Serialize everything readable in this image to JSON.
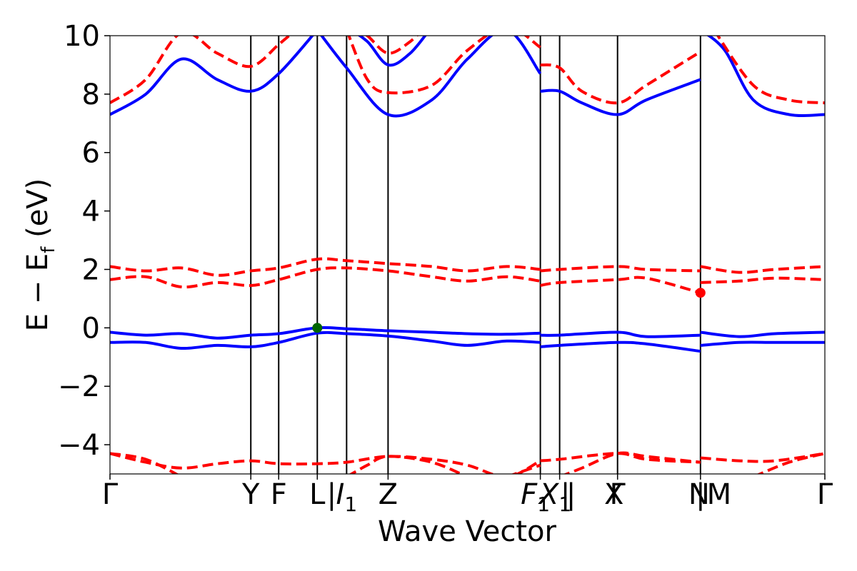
{
  "chart_data": {
    "type": "line",
    "xlabel": "Wave Vector",
    "ylabel": "E − E",
    "ylabel_sub": "f",
    "ylabel_unit": "(eV)",
    "ylim": [
      -5,
      10
    ],
    "xlim": [
      0,
      1
    ],
    "grid": false,
    "legend": "none",
    "yticks": [
      -4,
      -2,
      0,
      2,
      4,
      6,
      8,
      10
    ],
    "ytick_labels": [
      "−4",
      "−2",
      "0",
      "2",
      "4",
      "6",
      "8",
      "10"
    ],
    "kpath_labels": [
      {
        "x": 0.0,
        "label": "Γ"
      },
      {
        "x": 0.197,
        "label": "Y"
      },
      {
        "x": 0.236,
        "label": "F"
      },
      {
        "x": 0.29,
        "label": "L"
      },
      {
        "x": 0.331,
        "label": "I",
        "sub": "1",
        "italic": true
      },
      {
        "x": 0.389,
        "label": "Z"
      },
      {
        "x": 0.595,
        "label": "F",
        "sub": "1",
        "italic": true
      },
      {
        "x": 0.623,
        "label": "X",
        "sub": "1",
        "italic": true
      },
      {
        "x": 0.705,
        "label": "X"
      },
      {
        "x": 0.71,
        "label": "Γ"
      },
      {
        "x": 0.824,
        "label": "N"
      },
      {
        "x": 0.852,
        "label": "M"
      },
      {
        "x": 1.0,
        "label": "Γ"
      }
    ],
    "kpath_separators": [
      {
        "x": 0.31
      },
      {
        "x": 0.645
      },
      {
        "x": 0.637
      },
      {
        "x": 0.826
      }
    ],
    "vlines": [
      0.197,
      0.236,
      0.29,
      0.331,
      0.389,
      0.602,
      0.629,
      0.71,
      0.826
    ],
    "colors": {
      "valence": "#0000ff",
      "conduction": "#ff0000",
      "vbm": "#006400",
      "cbm": "#ff0000"
    },
    "markers": [
      {
        "name": "VBM",
        "x": 0.29,
        "y": 0.0,
        "color": "#006400"
      },
      {
        "name": "CBM",
        "x": 0.826,
        "y": 1.2,
        "color": "#ff0000"
      }
    ],
    "series": [
      {
        "band": "valence",
        "style": "solid",
        "segments": [
          [
            [
              0.0,
              -0.15
            ],
            [
              0.05,
              -0.25
            ],
            [
              0.1,
              -0.2
            ],
            [
              0.15,
              -0.35
            ],
            [
              0.197,
              -0.25
            ],
            [
              0.236,
              -0.2
            ],
            [
              0.29,
              0.0
            ],
            [
              0.331,
              -0.03
            ],
            [
              0.389,
              -0.1
            ],
            [
              0.45,
              -0.15
            ],
            [
              0.5,
              -0.2
            ],
            [
              0.555,
              -0.22
            ],
            [
              0.602,
              -0.18
            ]
          ],
          [
            [
              0.602,
              -0.25
            ],
            [
              0.629,
              -0.25
            ],
            [
              0.71,
              -0.15
            ],
            [
              0.75,
              -0.3
            ],
            [
              0.826,
              -0.25
            ]
          ],
          [
            [
              0.826,
              -0.15
            ],
            [
              0.88,
              -0.3
            ],
            [
              0.93,
              -0.2
            ],
            [
              1.0,
              -0.15
            ]
          ]
        ]
      },
      {
        "band": "valence",
        "style": "solid",
        "segments": [
          [
            [
              0.0,
              -0.5
            ],
            [
              0.05,
              -0.5
            ],
            [
              0.1,
              -0.7
            ],
            [
              0.15,
              -0.6
            ],
            [
              0.197,
              -0.65
            ],
            [
              0.236,
              -0.5
            ],
            [
              0.29,
              -0.18
            ],
            [
              0.331,
              -0.2
            ],
            [
              0.389,
              -0.28
            ],
            [
              0.45,
              -0.45
            ],
            [
              0.5,
              -0.6
            ],
            [
              0.555,
              -0.45
            ],
            [
              0.602,
              -0.5
            ]
          ],
          [
            [
              0.602,
              -0.65
            ],
            [
              0.629,
              -0.6
            ],
            [
              0.71,
              -0.5
            ],
            [
              0.75,
              -0.55
            ],
            [
              0.826,
              -0.8
            ]
          ],
          [
            [
              0.826,
              -0.6
            ],
            [
              0.88,
              -0.5
            ],
            [
              0.93,
              -0.5
            ],
            [
              1.0,
              -0.5
            ]
          ]
        ]
      },
      {
        "band": "conduction",
        "style": "dashed",
        "segments": [
          [
            [
              0.0,
              1.65
            ],
            [
              0.05,
              1.75
            ],
            [
              0.1,
              1.4
            ],
            [
              0.15,
              1.55
            ],
            [
              0.197,
              1.45
            ],
            [
              0.236,
              1.65
            ],
            [
              0.29,
              2.0
            ],
            [
              0.331,
              2.05
            ],
            [
              0.389,
              1.95
            ],
            [
              0.45,
              1.75
            ],
            [
              0.5,
              1.6
            ],
            [
              0.555,
              1.75
            ],
            [
              0.602,
              1.6
            ]
          ],
          [
            [
              0.602,
              1.45
            ],
            [
              0.629,
              1.55
            ],
            [
              0.71,
              1.65
            ],
            [
              0.75,
              1.7
            ],
            [
              0.826,
              1.2
            ]
          ],
          [
            [
              0.826,
              1.55
            ],
            [
              0.88,
              1.6
            ],
            [
              0.93,
              1.7
            ],
            [
              1.0,
              1.65
            ]
          ]
        ]
      },
      {
        "band": "conduction",
        "style": "dashed",
        "segments": [
          [
            [
              0.0,
              2.1
            ],
            [
              0.05,
              1.95
            ],
            [
              0.1,
              2.05
            ],
            [
              0.15,
              1.8
            ],
            [
              0.197,
              1.95
            ],
            [
              0.236,
              2.05
            ],
            [
              0.29,
              2.35
            ],
            [
              0.331,
              2.3
            ],
            [
              0.389,
              2.2
            ],
            [
              0.45,
              2.1
            ],
            [
              0.5,
              1.95
            ],
            [
              0.555,
              2.1
            ],
            [
              0.602,
              2.0
            ]
          ],
          [
            [
              0.602,
              1.95
            ],
            [
              0.629,
              2.0
            ],
            [
              0.71,
              2.1
            ],
            [
              0.75,
              2.0
            ],
            [
              0.826,
              1.95
            ]
          ],
          [
            [
              0.826,
              2.1
            ],
            [
              0.88,
              1.9
            ],
            [
              0.93,
              2.0
            ],
            [
              1.0,
              2.1
            ]
          ]
        ]
      },
      {
        "band": "valence",
        "style": "solid",
        "segments": [
          [
            [
              0.0,
              7.3
            ],
            [
              0.05,
              8.0
            ],
            [
              0.1,
              9.2
            ],
            [
              0.15,
              8.5
            ],
            [
              0.197,
              8.1
            ],
            [
              0.236,
              8.7
            ],
            [
              0.29,
              10.2
            ]
          ],
          [
            [
              0.29,
              10.2
            ],
            [
              0.331,
              8.9
            ],
            [
              0.389,
              7.3
            ],
            [
              0.45,
              7.8
            ],
            [
              0.5,
              9.2
            ],
            [
              0.555,
              10.2
            ],
            [
              0.602,
              8.7
            ]
          ],
          [
            [
              0.602,
              8.1
            ],
            [
              0.629,
              8.1
            ],
            [
              0.66,
              7.7
            ],
            [
              0.71,
              7.3
            ],
            [
              0.75,
              7.8
            ],
            [
              0.826,
              8.5
            ]
          ],
          [
            [
              0.826,
              10.2
            ],
            [
              0.86,
              9.5
            ],
            [
              0.9,
              7.8
            ],
            [
              0.95,
              7.3
            ],
            [
              1.0,
              7.3
            ]
          ]
        ]
      },
      {
        "band": "valence",
        "style": "solid",
        "segments": [
          [
            [
              0.331,
              10.3
            ],
            [
              0.36,
              9.8
            ],
            [
              0.389,
              9.0
            ],
            [
              0.42,
              9.4
            ],
            [
              0.45,
              10.3
            ]
          ]
        ]
      },
      {
        "band": "conduction",
        "style": "dashed",
        "segments": [
          [
            [
              0.0,
              7.7
            ],
            [
              0.05,
              8.5
            ],
            [
              0.1,
              10.1
            ],
            [
              0.15,
              9.4
            ],
            [
              0.197,
              8.95
            ],
            [
              0.236,
              9.7
            ],
            [
              0.26,
              10.2
            ]
          ],
          [
            [
              0.331,
              10.2
            ],
            [
              0.36,
              8.5
            ],
            [
              0.389,
              8.05
            ],
            [
              0.45,
              8.3
            ],
            [
              0.5,
              9.5
            ],
            [
              0.555,
              10.3
            ],
            [
              0.602,
              9.6
            ]
          ],
          [
            [
              0.602,
              9.0
            ],
            [
              0.629,
              8.9
            ],
            [
              0.66,
              8.1
            ],
            [
              0.71,
              7.7
            ],
            [
              0.75,
              8.3
            ],
            [
              0.826,
              9.45
            ]
          ],
          [
            [
              0.845,
              10.2
            ],
            [
              0.9,
              8.3
            ],
            [
              0.95,
              7.8
            ],
            [
              1.0,
              7.7
            ]
          ]
        ]
      },
      {
        "band": "conduction",
        "style": "dashed",
        "segments": [
          [
            [
              0.34,
              10.3
            ],
            [
              0.36,
              10.0
            ],
            [
              0.389,
              9.4
            ],
            [
              0.42,
              9.8
            ],
            [
              0.44,
              10.3
            ]
          ]
        ]
      },
      {
        "band": "conduction",
        "style": "dashed",
        "segments": [
          [
            [
              0.0,
              -4.3
            ],
            [
              0.05,
              -4.6
            ],
            [
              0.1,
              -4.8
            ],
            [
              0.15,
              -4.65
            ],
            [
              0.197,
              -4.55
            ],
            [
              0.236,
              -4.65
            ],
            [
              0.29,
              -4.65
            ],
            [
              0.331,
              -4.6
            ],
            [
              0.389,
              -4.4
            ],
            [
              0.45,
              -4.5
            ],
            [
              0.5,
              -4.7
            ],
            [
              0.555,
              -5.1
            ],
            [
              0.602,
              -4.55
            ]
          ],
          [
            [
              0.602,
              -4.55
            ],
            [
              0.629,
              -4.5
            ],
            [
              0.71,
              -4.3
            ],
            [
              0.75,
              -4.5
            ],
            [
              0.826,
              -4.6
            ]
          ],
          [
            [
              0.826,
              -4.45
            ],
            [
              0.88,
              -4.55
            ],
            [
              0.93,
              -4.55
            ],
            [
              1.0,
              -4.3
            ]
          ]
        ]
      },
      {
        "band": "conduction",
        "style": "dashed",
        "segments": [
          [
            [
              0.0,
              -4.3
            ],
            [
              0.05,
              -4.5
            ],
            [
              0.1,
              -5.1
            ]
          ],
          [
            [
              0.331,
              -5.1
            ],
            [
              0.36,
              -4.7
            ],
            [
              0.389,
              -4.4
            ],
            [
              0.45,
              -4.6
            ],
            [
              0.5,
              -5.1
            ]
          ],
          [
            [
              0.555,
              -5.1
            ],
            [
              0.602,
              -4.7
            ]
          ],
          [
            [
              0.629,
              -5.1
            ],
            [
              0.66,
              -4.8
            ],
            [
              0.71,
              -4.3
            ],
            [
              0.75,
              -4.4
            ],
            [
              0.826,
              -4.6
            ]
          ],
          [
            [
              0.9,
              -5.1
            ],
            [
              0.95,
              -4.6
            ],
            [
              1.0,
              -4.3
            ]
          ]
        ]
      }
    ]
  }
}
